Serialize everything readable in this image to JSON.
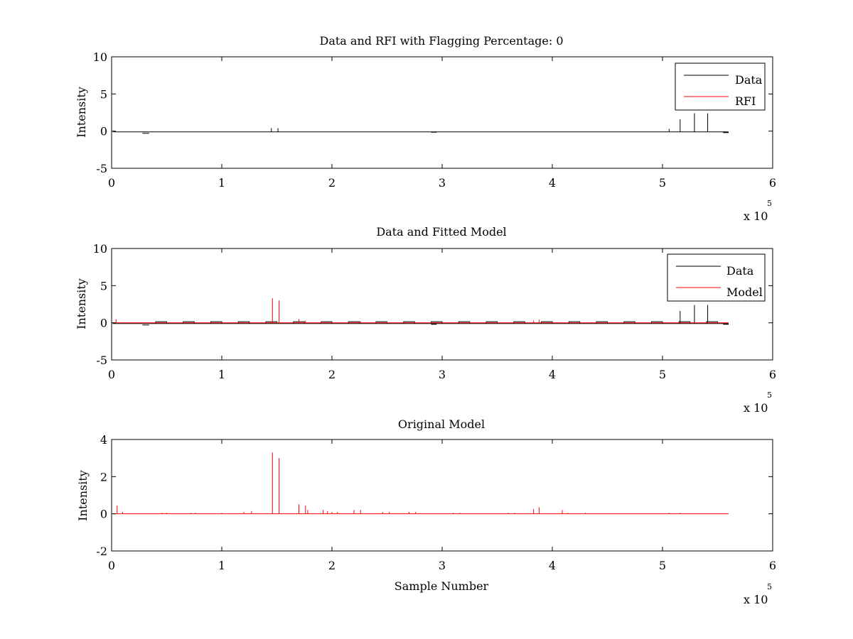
{
  "figure": {
    "background": "#ffffff",
    "axes_color": "#000000"
  },
  "chart_data": [
    {
      "type": "line",
      "title": "Data and RFI with Flagging Percentage: 0",
      "xlabel": "",
      "ylabel": "Intensity",
      "xlim": [
        0,
        600000
      ],
      "ylim": [
        -5,
        10
      ],
      "xticks": [
        0,
        1,
        2,
        3,
        4,
        5,
        6
      ],
      "yticks": [
        -5,
        0,
        5,
        10
      ],
      "x_multiplier_base": "x 10",
      "x_multiplier_exp": "5",
      "legend": {
        "position": "top-right",
        "entries": [
          "Data",
          "RFI"
        ]
      },
      "series": [
        {
          "name": "Data",
          "color": "#000000",
          "baseline": -0.1,
          "x_end": 560000,
          "dips": [
            [
              28000,
              34000,
              -0.3
            ],
            [
              290000,
              295000,
              -0.15
            ],
            [
              555000,
              560000,
              -0.2
            ]
          ],
          "spikes": [
            [
              145000,
              0.4
            ],
            [
              151000,
              0.4
            ],
            [
              506000,
              0.3
            ],
            [
              516000,
              1.6
            ],
            [
              529000,
              2.4
            ],
            [
              541000,
              2.4
            ]
          ]
        },
        {
          "name": "RFI",
          "color": "#ff0000",
          "values": []
        }
      ]
    },
    {
      "type": "line",
      "title": "Data and Fitted Model",
      "xlabel": "",
      "ylabel": "Intensity",
      "xlim": [
        0,
        600000
      ],
      "ylim": [
        -5,
        10
      ],
      "xticks": [
        0,
        1,
        2,
        3,
        4,
        5,
        6
      ],
      "yticks": [
        -5,
        0,
        5,
        10
      ],
      "x_multiplier_base": "x 10",
      "x_multiplier_exp": "5",
      "legend": {
        "position": "top-right",
        "entries": [
          "Data",
          "Model"
        ]
      },
      "series": [
        {
          "name": "Data",
          "color": "#000000",
          "baseline": -0.1,
          "x_end": 560000,
          "boxes_start": 40000,
          "boxes_step": 25000,
          "boxes_width": 10000,
          "boxes_height": 0.25,
          "dips": [
            [
              28000,
              34000,
              -0.3
            ],
            [
              290000,
              295000,
              -0.2
            ],
            [
              555000,
              560000,
              -0.2
            ]
          ],
          "spikes": [
            [
              516000,
              1.6
            ],
            [
              529000,
              2.4
            ],
            [
              541000,
              2.4
            ]
          ]
        },
        {
          "name": "Model",
          "color": "#ff0000",
          "baseline": 0,
          "x_end": 560000,
          "spikes": [
            [
              4000,
              0.5
            ],
            [
              146000,
              3.3
            ],
            [
              152000,
              3.0
            ],
            [
              170000,
              0.5
            ],
            [
              176000,
              0.3
            ],
            [
              190000,
              0.2
            ],
            [
              220000,
              0.2
            ],
            [
              226000,
              0.2
            ],
            [
              250000,
              0.15
            ],
            [
              383000,
              0.3
            ],
            [
              388000,
              0.4
            ]
          ]
        }
      ]
    },
    {
      "type": "line",
      "title": "Original Model",
      "xlabel": "Sample Number",
      "ylabel": "Intensity",
      "xlim": [
        0,
        600000
      ],
      "ylim": [
        -2,
        4
      ],
      "xticks": [
        0,
        1,
        2,
        3,
        4,
        5,
        6
      ],
      "yticks": [
        -2,
        0,
        2,
        4
      ],
      "x_multiplier_base": "x 10",
      "x_multiplier_exp": "5",
      "series": [
        {
          "name": "Original Model",
          "color": "#ff0000",
          "baseline": 0,
          "x_end": 560000,
          "spikes": [
            [
              5000,
              0.45
            ],
            [
              10000,
              0.1
            ],
            [
              46000,
              0.05
            ],
            [
              50000,
              0.05
            ],
            [
              72000,
              0.05
            ],
            [
              76000,
              0.05
            ],
            [
              100000,
              0.05
            ],
            [
              120000,
              0.1
            ],
            [
              127000,
              0.15
            ],
            [
              146000,
              3.3
            ],
            [
              152000,
              3.0
            ],
            [
              170000,
              0.5
            ],
            [
              176000,
              0.45
            ],
            [
              178000,
              0.2
            ],
            [
              192000,
              0.2
            ],
            [
              196000,
              0.15
            ],
            [
              200000,
              0.1
            ],
            [
              205000,
              0.1
            ],
            [
              220000,
              0.2
            ],
            [
              226000,
              0.2
            ],
            [
              246000,
              0.1
            ],
            [
              252000,
              0.1
            ],
            [
              270000,
              0.1
            ],
            [
              276000,
              0.1
            ],
            [
              310000,
              0.05
            ],
            [
              316000,
              0.05
            ],
            [
              360000,
              0.05
            ],
            [
              366000,
              0.05
            ],
            [
              383000,
              0.25
            ],
            [
              388000,
              0.35
            ],
            [
              409000,
              0.2
            ],
            [
              414000,
              0.05
            ],
            [
              430000,
              0.05
            ],
            [
              506000,
              0.05
            ],
            [
              516000,
              0.05
            ]
          ]
        }
      ]
    }
  ]
}
